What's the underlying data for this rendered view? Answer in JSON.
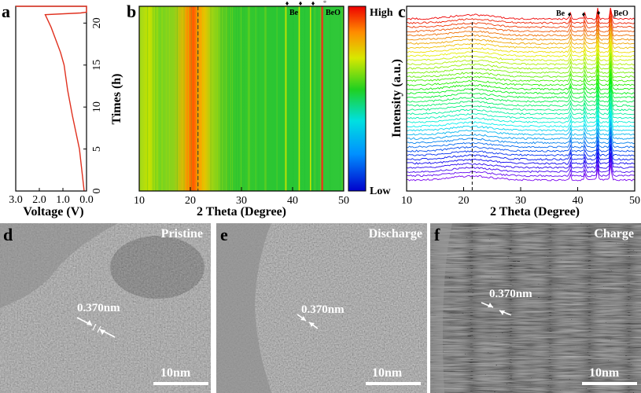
{
  "panels": {
    "a": {
      "label": "a",
      "xlabel": "Voltage (V)",
      "ylabel": "Times (h)",
      "xticks": [
        "3.0",
        "2.0",
        "1.0",
        "0.0"
      ],
      "yticks": [
        "0",
        "5",
        "10",
        "15",
        "20"
      ]
    },
    "b": {
      "label": "b",
      "xlabel": "2 Theta (Degree)",
      "xticks": [
        "10",
        "20",
        "30",
        "40",
        "50"
      ],
      "annot_be": "Be",
      "annot_beo": "BeO"
    },
    "colorbar": {
      "high": "High",
      "low": "Low"
    },
    "c": {
      "label": "c",
      "xlabel": "2 Theta (Degree)",
      "ylabel": "Intensity (a.u.)",
      "xticks": [
        "10",
        "20",
        "30",
        "40",
        "50"
      ],
      "annot_be": "Be",
      "annot_beo": "BeO"
    },
    "d": {
      "label": "d",
      "title": "Pristine",
      "dim": "0.370nm",
      "scale": "10nm"
    },
    "e": {
      "label": "e",
      "title": "Discharge",
      "dim": "0.370nm",
      "scale": "10nm"
    },
    "f": {
      "label": "f",
      "title": "Charge",
      "dim": "0.370nm",
      "scale": "10nm"
    }
  },
  "chart_data": [
    {
      "panel": "a",
      "type": "line",
      "title": "",
      "xlabel": "Voltage (V)",
      "ylabel": "Times (h)",
      "xlim": [
        3.0,
        0.0
      ],
      "ylim": [
        0,
        22
      ],
      "x": [
        0.1,
        0.3,
        0.6,
        0.8,
        0.95,
        1.1,
        1.3,
        1.5,
        1.75,
        0.25,
        0.0,
        0.0,
        1.9,
        2.6,
        3.0
      ],
      "y": [
        0.0,
        5.0,
        9.0,
        12.0,
        15.0,
        16.5,
        18.0,
        19.5,
        21.0,
        21.2,
        21.3,
        22.0,
        22.0,
        22.0,
        22.0
      ]
    },
    {
      "panel": "b",
      "type": "heatmap",
      "xlabel": "2 Theta (Degree)",
      "xlim": [
        10,
        50
      ],
      "colorbar": [
        "Low",
        "High"
      ],
      "features": [
        {
          "x": 21.5,
          "label": "broad amorphous hump"
        },
        {
          "x": 38.7,
          "label": "Be"
        },
        {
          "x": 41.3,
          "label": "Be"
        },
        {
          "x": 43.5,
          "label": "Be"
        },
        {
          "x": 45.8,
          "label": "BeO"
        }
      ]
    },
    {
      "panel": "c",
      "type": "line",
      "xlabel": "2 Theta (Degree)",
      "ylabel": "Intensity (a.u.)",
      "xlim": [
        10,
        50
      ],
      "series_count": 40,
      "peaks": [
        {
          "x": 38.7,
          "label": "Be"
        },
        {
          "x": 41.3,
          "label": "Be"
        },
        {
          "x": 43.5,
          "label": "Be"
        },
        {
          "x": 45.8,
          "label": "BeO"
        }
      ]
    }
  ]
}
